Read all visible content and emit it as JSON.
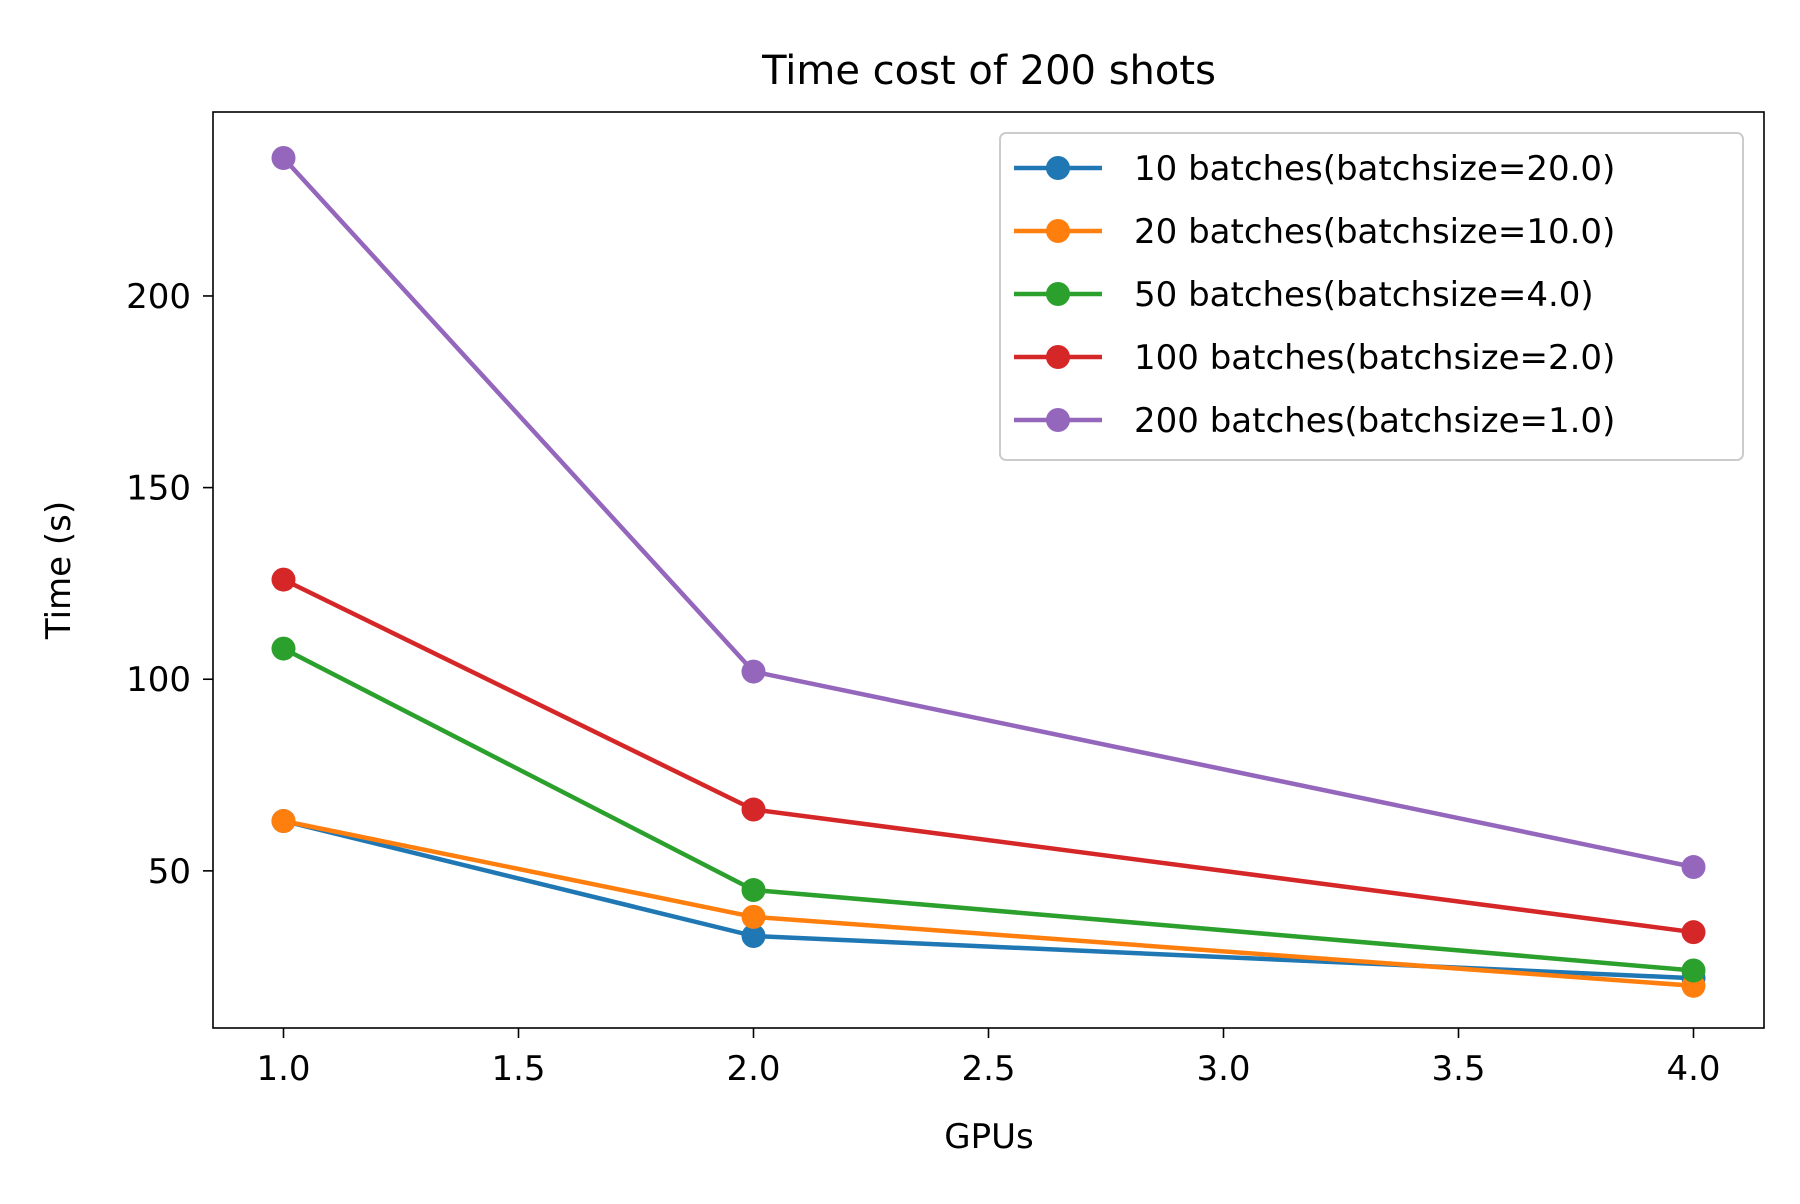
{
  "chart_data": {
    "type": "line",
    "title": "Time cost of 200 shots",
    "xlabel": "GPUs",
    "ylabel": "Time (s)",
    "x": [
      1.0,
      2.0,
      4.0
    ],
    "xlim": [
      0.85,
      4.15
    ],
    "ylim": [
      9,
      248
    ],
    "xticks": [
      1.0,
      1.5,
      2.0,
      2.5,
      3.0,
      3.5,
      4.0
    ],
    "xtick_labels": [
      "1.0",
      "1.5",
      "2.0",
      "2.5",
      "3.0",
      "3.5",
      "4.0"
    ],
    "yticks": [
      50,
      100,
      150,
      200
    ],
    "ytick_labels": [
      "50",
      "100",
      "150",
      "200"
    ],
    "grid": false,
    "legend_position": "top-right",
    "marker": "circle",
    "series": [
      {
        "name": "10 batches(batchsize=20.0)",
        "color": "#1f77b4",
        "values": [
          63,
          33,
          22
        ]
      },
      {
        "name": "20 batches(batchsize=10.0)",
        "color": "#ff7f0e",
        "values": [
          63,
          38,
          20
        ]
      },
      {
        "name": "50 batches(batchsize=4.0)",
        "color": "#2ca02c",
        "values": [
          108,
          45,
          24
        ]
      },
      {
        "name": "100 batches(batchsize=2.0)",
        "color": "#d62728",
        "values": [
          126,
          66,
          34
        ]
      },
      {
        "name": "200 batches(batchsize=1.0)",
        "color": "#9467bd",
        "values": [
          236,
          102,
          51
        ]
      }
    ]
  }
}
